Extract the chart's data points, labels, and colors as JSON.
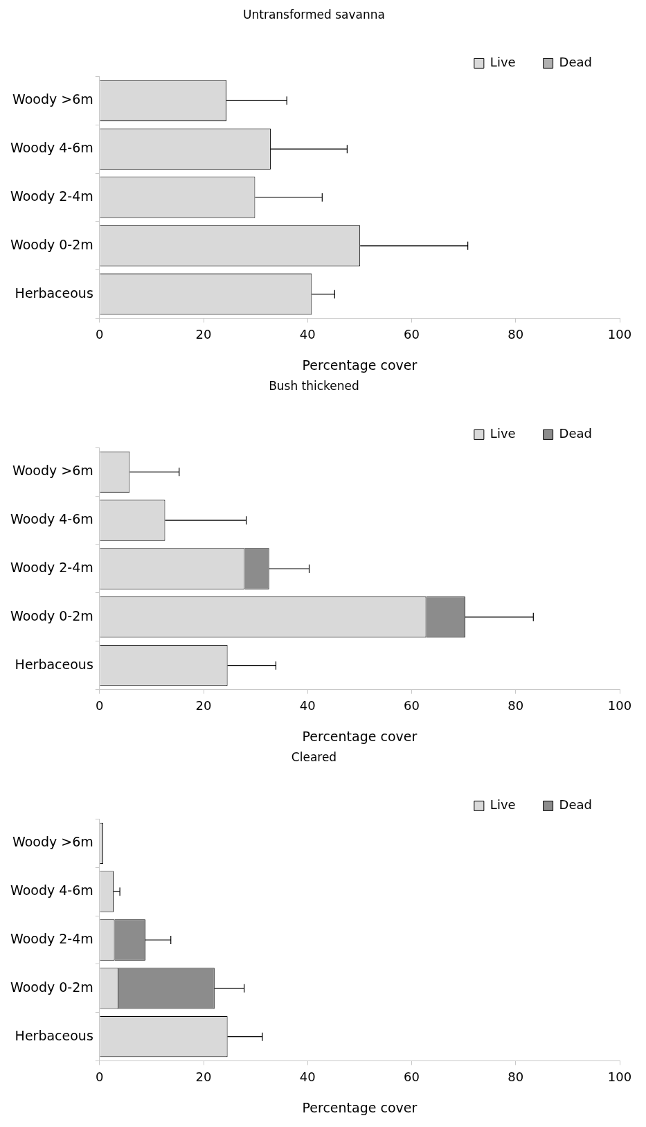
{
  "chart_data": [
    {
      "type": "bar",
      "orientation": "horizontal",
      "stacked": true,
      "title": "Untransformed savanna",
      "xlabel": "Percentage cover",
      "categories": [
        "Woody >6m",
        "Woody 4-6m",
        "Woody 2-4m",
        "Woody 0-2m",
        "Herbaceous"
      ],
      "xlim": [
        0,
        100
      ],
      "xticks": [
        0,
        20,
        40,
        60,
        80,
        100
      ],
      "grid": false,
      "legend": "top right",
      "series": [
        {
          "name": "Live",
          "color": "#d9d9d9",
          "values": [
            24.4,
            32.9,
            29.9,
            50.1,
            40.8
          ]
        },
        {
          "name": "Dead",
          "color": "#b0b0b0",
          "values": [
            0,
            0,
            0,
            0,
            0
          ],
          "errors": [
            [
              24.4,
              36.0
            ],
            [
              32.9,
              47.6
            ],
            [
              29.9,
              42.8
            ],
            [
              50.1,
              70.8
            ],
            [
              40.8,
              45.2
            ]
          ]
        }
      ]
    },
    {
      "type": "bar",
      "orientation": "horizontal",
      "stacked": true,
      "title": "Bush thickened",
      "xlabel": "Percentage cover",
      "categories": [
        "Woody >6m",
        "Woody 4-6m",
        "Woody 2-4m",
        "Woody 0-2m",
        "Herbaceous"
      ],
      "xlim": [
        0,
        100
      ],
      "xticks": [
        0,
        20,
        40,
        60,
        80,
        100
      ],
      "grid": false,
      "legend": "top right",
      "series": [
        {
          "name": "Live",
          "color": "#d9d9d9",
          "values": [
            5.8,
            12.6,
            27.9,
            62.8,
            24.6
          ]
        },
        {
          "name": "Dead",
          "color": "#8c8c8c",
          "values": [
            0,
            0,
            4.7,
            7.5,
            0
          ],
          "errors": [
            [
              5.8,
              15.3
            ],
            [
              12.6,
              28.2
            ],
            [
              32.6,
              40.3
            ],
            [
              70.3,
              83.4
            ],
            [
              24.6,
              33.9
            ]
          ]
        }
      ]
    },
    {
      "type": "bar",
      "orientation": "horizontal",
      "stacked": true,
      "title": "Cleared",
      "xlabel": "Percentage cover",
      "categories": [
        "Woody >6m",
        "Woody 4-6m",
        "Woody 2-4m",
        "Woody 0-2m",
        "Herbaceous"
      ],
      "xlim": [
        0,
        100
      ],
      "xticks": [
        0,
        20,
        40,
        60,
        80,
        100
      ],
      "grid": false,
      "legend": "top right",
      "series": [
        {
          "name": "Live",
          "color": "#d9d9d9",
          "values": [
            0.7,
            2.7,
            2.9,
            3.6,
            24.6
          ]
        },
        {
          "name": "Dead",
          "color": "#8c8c8c",
          "values": [
            0,
            0,
            5.9,
            18.5,
            0
          ],
          "errors": [
            null,
            [
              2.7,
              3.9
            ],
            [
              8.8,
              13.7
            ],
            [
              22.1,
              27.8
            ],
            [
              24.6,
              31.3
            ]
          ]
        }
      ]
    }
  ]
}
